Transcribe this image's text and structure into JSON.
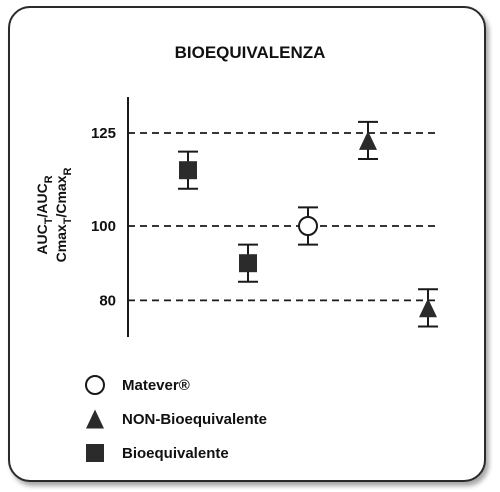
{
  "chart_data": {
    "type": "scatter",
    "title": "BIOEQUIVALENZA",
    "ylabel_lines": [
      {
        "base": "AUC",
        "sub1": "T",
        "mid": "/AUC",
        "sub2": "R"
      },
      {
        "base": "Cmax",
        "sub1": "T",
        "mid": "/Cmax",
        "sub2": "R"
      }
    ],
    "yticks": [
      125,
      100,
      80
    ],
    "ylim": [
      70,
      136
    ],
    "reference_lines": [
      125,
      100,
      80
    ],
    "points": [
      {
        "x": 1,
        "y": 115,
        "low": 110,
        "high": 120,
        "marker": "square",
        "series": "Bioequivalente"
      },
      {
        "x": 2,
        "y": 90,
        "low": 85,
        "high": 95,
        "marker": "square",
        "series": "Bioequivalente"
      },
      {
        "x": 3,
        "y": 100,
        "low": 95,
        "high": 105,
        "marker": "circle",
        "series": "Matever®"
      },
      {
        "x": 4,
        "y": 123,
        "low": 118,
        "high": 128,
        "marker": "triangle",
        "series": "NON-Bioequivalente"
      },
      {
        "x": 5,
        "y": 78,
        "low": 73,
        "high": 83,
        "marker": "triangle",
        "series": "NON-Bioequivalente"
      }
    ],
    "xlim": [
      0,
      6
    ],
    "legend": [
      {
        "label": "Matever®",
        "marker": "circle"
      },
      {
        "label": "NON-Bioequivalente",
        "marker": "triangle"
      },
      {
        "label": "Bioequivalente",
        "marker": "square"
      }
    ],
    "legend_position": "bottom-left",
    "colors": {
      "ink": "#1a1a1a",
      "marker_fill": "#2b2b2b"
    }
  }
}
